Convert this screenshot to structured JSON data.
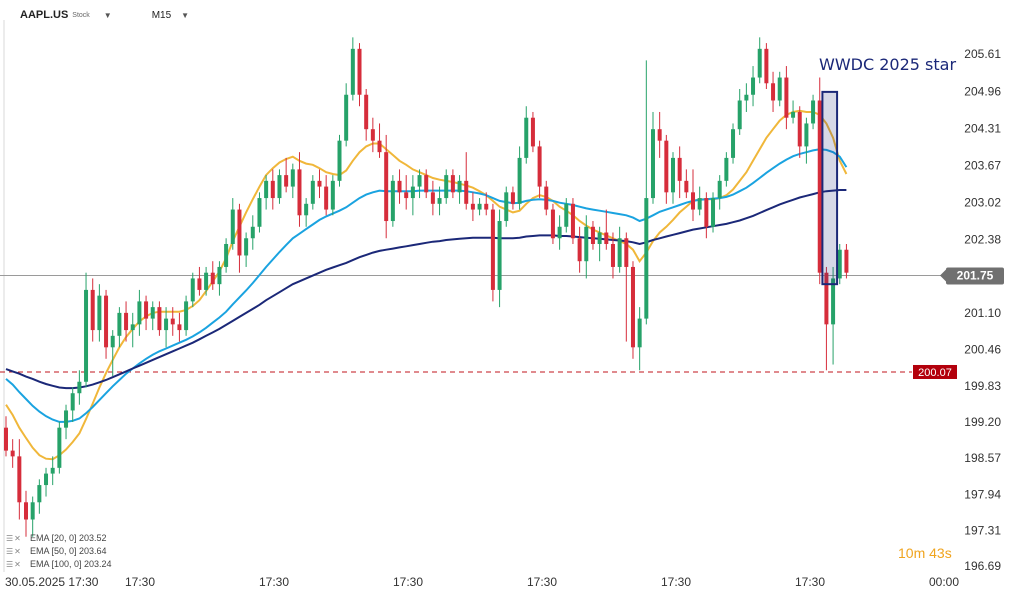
{
  "header": {
    "symbol": "AAPL.US",
    "asset_type": "Stock",
    "timeframe": "M15"
  },
  "colors": {
    "up_candle": "#26a269",
    "down_candle": "#d62d3b",
    "ema20": "#f0b73a",
    "ema50": "#1aa3e0",
    "ema100": "#1b2878",
    "price_line": "#9a9a9a",
    "price_label_bg": "#707070",
    "level_line": "#c0161c",
    "level_label_bg": "#b3000c",
    "annotation": "#1b2878",
    "timer": "#f0a41e"
  },
  "legend": [
    {
      "label": "EMA [20, 0] 203.52",
      "color": "#f0b73a"
    },
    {
      "label": "EMA [50, 0] 203.64",
      "color": "#1aa3e0"
    },
    {
      "label": "EMA [100, 0] 203.24",
      "color": "#1b2878"
    }
  ],
  "timer": {
    "minutes": "10",
    "m_unit": "m",
    "seconds": "43",
    "s_unit": "s"
  },
  "chart_data": {
    "type": "candlestick",
    "y_ticks": [
      "205.61",
      "204.96",
      "204.31",
      "203.67",
      "203.02",
      "202.38",
      "201.75",
      "201.10",
      "200.46",
      "199.83",
      "199.20",
      "198.57",
      "197.94",
      "197.31",
      "196.69"
    ],
    "x_ticks": [
      "30.05.2025 17:30",
      "17:30",
      "17:30",
      "17:30",
      "17:30",
      "17:30",
      "17:30",
      "00:00"
    ],
    "ylim": [
      196.69,
      206.1
    ],
    "current_price": 201.75,
    "current_price_label": "201.75",
    "level": 200.07,
    "level_label": "200.07",
    "annotation_text": "WWDC 2025 star",
    "annotation_box": {
      "from_index": 123,
      "to_index": 124,
      "high": 204.95,
      "low": 201.6
    },
    "candles_ohlc": [
      [
        199.1,
        199.3,
        198.6,
        198.7
      ],
      [
        198.7,
        198.9,
        198.4,
        198.6
      ],
      [
        198.6,
        198.9,
        197.5,
        197.8
      ],
      [
        197.8,
        198.0,
        197.2,
        197.5
      ],
      [
        197.5,
        197.9,
        197.2,
        197.8
      ],
      [
        197.8,
        198.2,
        197.6,
        198.1
      ],
      [
        198.1,
        198.4,
        197.9,
        198.3
      ],
      [
        198.3,
        198.6,
        198.1,
        198.4
      ],
      [
        198.4,
        199.2,
        198.3,
        199.1
      ],
      [
        199.1,
        199.5,
        198.9,
        199.4
      ],
      [
        199.4,
        199.8,
        199.2,
        199.7
      ],
      [
        199.7,
        200.1,
        199.5,
        199.9
      ],
      [
        199.9,
        201.8,
        199.8,
        201.5
      ],
      [
        201.5,
        201.7,
        200.6,
        200.8
      ],
      [
        200.8,
        201.6,
        200.6,
        201.4
      ],
      [
        201.4,
        201.5,
        200.3,
        200.5
      ],
      [
        200.5,
        200.8,
        200.0,
        200.7
      ],
      [
        200.7,
        201.2,
        200.5,
        201.1
      ],
      [
        201.1,
        201.3,
        200.6,
        200.8
      ],
      [
        200.8,
        201.1,
        200.5,
        200.9
      ],
      [
        200.9,
        201.5,
        200.7,
        201.3
      ],
      [
        201.3,
        201.4,
        200.8,
        201.0
      ],
      [
        201.0,
        201.3,
        200.8,
        201.2
      ],
      [
        201.2,
        201.3,
        200.7,
        200.8
      ],
      [
        200.8,
        201.2,
        200.5,
        201.0
      ],
      [
        201.0,
        201.2,
        200.7,
        200.9
      ],
      [
        200.9,
        201.1,
        200.6,
        200.8
      ],
      [
        200.8,
        201.4,
        200.7,
        201.3
      ],
      [
        201.3,
        201.8,
        201.2,
        201.7
      ],
      [
        201.7,
        201.9,
        201.4,
        201.5
      ],
      [
        201.5,
        201.9,
        201.4,
        201.8
      ],
      [
        201.8,
        202.0,
        201.5,
        201.6
      ],
      [
        201.6,
        202.0,
        201.4,
        201.9
      ],
      [
        201.9,
        202.4,
        201.8,
        202.3
      ],
      [
        202.3,
        203.1,
        202.2,
        202.9
      ],
      [
        202.9,
        203.0,
        201.8,
        202.1
      ],
      [
        202.1,
        202.5,
        201.9,
        202.4
      ],
      [
        202.4,
        202.8,
        202.2,
        202.6
      ],
      [
        202.6,
        203.2,
        202.5,
        203.1
      ],
      [
        203.1,
        203.5,
        202.9,
        203.4
      ],
      [
        203.4,
        203.6,
        202.9,
        203.1
      ],
      [
        203.1,
        203.6,
        203.0,
        203.5
      ],
      [
        203.5,
        203.8,
        203.2,
        203.3
      ],
      [
        203.3,
        203.7,
        203.1,
        203.6
      ],
      [
        203.6,
        203.9,
        202.6,
        202.8
      ],
      [
        202.8,
        203.1,
        202.6,
        203.0
      ],
      [
        203.0,
        203.5,
        202.9,
        203.4
      ],
      [
        203.4,
        203.6,
        203.1,
        203.3
      ],
      [
        203.3,
        203.5,
        202.8,
        202.9
      ],
      [
        202.9,
        203.5,
        202.8,
        203.4
      ],
      [
        203.4,
        204.2,
        203.3,
        204.1
      ],
      [
        204.1,
        205.1,
        204.0,
        204.9
      ],
      [
        204.9,
        205.9,
        204.8,
        205.7
      ],
      [
        205.7,
        205.8,
        204.7,
        204.9
      ],
      [
        204.9,
        205.0,
        204.1,
        204.3
      ],
      [
        204.3,
        204.5,
        203.9,
        204.1
      ],
      [
        204.1,
        204.4,
        203.8,
        203.9
      ],
      [
        203.9,
        204.2,
        202.4,
        202.7
      ],
      [
        202.7,
        203.5,
        202.6,
        203.4
      ],
      [
        203.4,
        203.6,
        203.0,
        203.2
      ],
      [
        203.2,
        203.5,
        202.9,
        203.1
      ],
      [
        203.1,
        203.5,
        202.8,
        203.3
      ],
      [
        203.3,
        203.6,
        203.1,
        203.5
      ],
      [
        203.5,
        203.6,
        203.1,
        203.2
      ],
      [
        203.2,
        203.4,
        202.8,
        203.0
      ],
      [
        203.0,
        203.3,
        202.8,
        203.1
      ],
      [
        203.1,
        203.6,
        203.0,
        203.5
      ],
      [
        203.5,
        203.6,
        203.1,
        203.2
      ],
      [
        203.2,
        203.5,
        203.0,
        203.4
      ],
      [
        203.4,
        203.9,
        202.9,
        203.0
      ],
      [
        203.0,
        203.2,
        202.7,
        202.9
      ],
      [
        202.9,
        203.1,
        202.8,
        203.0
      ],
      [
        203.0,
        203.2,
        202.8,
        202.9
      ],
      [
        202.9,
        203.0,
        201.3,
        201.5
      ],
      [
        201.5,
        202.9,
        201.2,
        202.7
      ],
      [
        202.7,
        203.3,
        202.6,
        203.2
      ],
      [
        203.2,
        203.3,
        202.9,
        203.0
      ],
      [
        203.0,
        204.0,
        202.9,
        203.8
      ],
      [
        203.8,
        204.7,
        203.7,
        204.5
      ],
      [
        204.5,
        204.6,
        203.9,
        204.0
      ],
      [
        204.0,
        204.1,
        203.1,
        203.3
      ],
      [
        203.3,
        203.4,
        202.8,
        202.9
      ],
      [
        202.9,
        203.0,
        202.3,
        202.4
      ],
      [
        202.4,
        202.8,
        202.2,
        202.6
      ],
      [
        202.6,
        203.1,
        202.5,
        203.0
      ],
      [
        203.0,
        203.1,
        202.3,
        202.4
      ],
      [
        202.4,
        202.6,
        201.8,
        202.0
      ],
      [
        202.0,
        202.8,
        201.7,
        202.6
      ],
      [
        202.6,
        202.7,
        202.2,
        202.3
      ],
      [
        202.3,
        202.6,
        202.0,
        202.5
      ],
      [
        202.5,
        202.9,
        202.2,
        202.3
      ],
      [
        202.3,
        202.5,
        201.7,
        201.9
      ],
      [
        201.9,
        202.6,
        201.8,
        202.4
      ],
      [
        202.4,
        202.5,
        200.6,
        201.9
      ],
      [
        201.9,
        202.0,
        200.3,
        200.5
      ],
      [
        200.5,
        201.2,
        200.1,
        201.0
      ],
      [
        201.0,
        205.5,
        200.9,
        203.1
      ],
      [
        203.1,
        204.6,
        203.0,
        204.3
      ],
      [
        204.3,
        204.6,
        203.8,
        204.1
      ],
      [
        204.1,
        204.2,
        203.0,
        203.2
      ],
      [
        203.2,
        203.9,
        203.0,
        203.8
      ],
      [
        203.8,
        204.0,
        203.1,
        203.4
      ],
      [
        203.4,
        203.6,
        203.1,
        203.2
      ],
      [
        203.2,
        203.6,
        202.7,
        202.9
      ],
      [
        202.9,
        203.3,
        202.8,
        203.1
      ],
      [
        203.1,
        203.2,
        202.4,
        202.6
      ],
      [
        202.6,
        203.2,
        202.5,
        203.1
      ],
      [
        203.1,
        203.5,
        202.9,
        203.4
      ],
      [
        203.4,
        203.9,
        203.3,
        203.8
      ],
      [
        203.8,
        204.4,
        203.7,
        204.3
      ],
      [
        204.3,
        205.0,
        204.2,
        204.8
      ],
      [
        204.8,
        205.1,
        204.6,
        204.9
      ],
      [
        204.9,
        205.4,
        204.7,
        205.2
      ],
      [
        205.2,
        205.9,
        205.1,
        205.7
      ],
      [
        205.7,
        205.8,
        205.0,
        205.1
      ],
      [
        205.1,
        205.3,
        204.6,
        204.8
      ],
      [
        204.8,
        205.3,
        204.7,
        205.2
      ],
      [
        205.2,
        205.4,
        204.3,
        204.5
      ],
      [
        204.5,
        204.8,
        204.4,
        204.6
      ],
      [
        204.6,
        204.7,
        203.8,
        204.0
      ],
      [
        204.0,
        204.5,
        203.7,
        204.4
      ],
      [
        204.4,
        204.9,
        204.3,
        204.8
      ],
      [
        204.8,
        205.2,
        201.6,
        201.8
      ],
      [
        201.8,
        201.9,
        200.1,
        200.9
      ],
      [
        200.9,
        201.9,
        200.2,
        201.7
      ],
      [
        201.7,
        202.3,
        201.6,
        202.2
      ],
      [
        202.2,
        202.3,
        201.7,
        201.8
      ]
    ],
    "ema": [
      {
        "period": 20,
        "values": [
          199.5,
          199.32,
          199.1,
          198.92,
          198.75,
          198.62,
          198.56,
          198.55,
          198.62,
          198.72,
          198.85,
          199.0,
          199.25,
          199.52,
          199.8,
          200.05,
          200.28,
          200.5,
          200.68,
          200.82,
          200.95,
          201.04,
          201.1,
          201.12,
          201.12,
          201.12,
          201.12,
          201.15,
          201.22,
          201.32,
          201.48,
          201.65,
          201.82,
          202.05,
          202.35,
          202.6,
          202.85,
          203.08,
          203.3,
          203.5,
          203.62,
          203.72,
          203.78,
          203.82,
          203.75,
          203.7,
          203.68,
          203.62,
          203.55,
          203.52,
          203.5,
          203.58,
          203.75,
          203.9,
          204.0,
          204.05,
          204.05,
          203.95,
          203.85,
          203.75,
          203.68,
          203.6,
          203.55,
          203.5,
          203.45,
          203.42,
          203.4,
          203.38,
          203.35,
          203.32,
          203.28,
          203.22,
          203.15,
          203.05,
          202.95,
          202.9,
          202.85,
          202.88,
          203.0,
          203.1,
          203.15,
          203.12,
          203.05,
          202.95,
          202.88,
          202.8,
          202.7,
          202.62,
          202.55,
          202.5,
          202.45,
          202.4,
          202.35,
          202.3,
          202.2,
          202.0,
          202.15,
          202.35,
          202.5,
          202.6,
          202.72,
          202.85,
          202.95,
          203.05,
          203.08,
          203.08,
          203.08,
          203.1,
          203.15,
          203.25,
          203.4,
          203.55,
          203.75,
          203.95,
          204.15,
          204.3,
          204.45,
          204.55,
          204.6,
          204.62,
          204.6,
          204.6,
          204.55,
          204.4,
          204.15,
          203.75,
          203.52
        ]
      },
      {
        "period": 50,
        "values": [
          199.95,
          199.85,
          199.72,
          199.6,
          199.48,
          199.38,
          199.3,
          199.24,
          199.2,
          199.2,
          199.22,
          199.26,
          199.35,
          199.46,
          199.58,
          199.7,
          199.82,
          199.93,
          200.04,
          200.13,
          200.22,
          200.3,
          200.37,
          200.43,
          200.48,
          200.53,
          200.58,
          200.63,
          200.69,
          200.76,
          200.84,
          200.93,
          201.02,
          201.12,
          201.25,
          201.37,
          201.49,
          201.62,
          201.76,
          201.9,
          202.03,
          202.16,
          202.28,
          202.4,
          202.48,
          202.56,
          202.64,
          202.72,
          202.78,
          202.83,
          202.88,
          202.94,
          203.02,
          203.1,
          203.16,
          203.2,
          203.23,
          203.22,
          203.22,
          203.22,
          203.22,
          203.22,
          203.23,
          203.23,
          203.23,
          203.23,
          203.23,
          203.23,
          203.23,
          203.22,
          203.2,
          203.18,
          203.15,
          203.1,
          203.05,
          203.03,
          203.01,
          203.02,
          203.05,
          203.07,
          203.08,
          203.07,
          203.05,
          203.02,
          203.0,
          202.98,
          202.95,
          202.92,
          202.9,
          202.88,
          202.86,
          202.84,
          202.82,
          202.8,
          202.76,
          202.7,
          202.74,
          202.8,
          202.86,
          202.9,
          202.94,
          202.98,
          203.02,
          203.05,
          203.07,
          203.08,
          203.09,
          203.1,
          203.12,
          203.16,
          203.22,
          203.28,
          203.36,
          203.45,
          203.54,
          203.62,
          203.7,
          203.77,
          203.83,
          203.87,
          203.9,
          203.93,
          203.95,
          203.94,
          203.9,
          203.82,
          203.64
        ]
      },
      {
        "period": 100,
        "values": [
          200.12,
          200.08,
          200.04,
          199.99,
          199.95,
          199.9,
          199.86,
          199.83,
          199.8,
          199.79,
          199.79,
          199.8,
          199.82,
          199.85,
          199.89,
          199.93,
          199.98,
          200.03,
          200.08,
          200.13,
          200.18,
          200.23,
          200.28,
          200.33,
          200.38,
          200.43,
          200.48,
          200.53,
          200.58,
          200.64,
          200.7,
          200.76,
          200.82,
          200.89,
          200.96,
          201.03,
          201.1,
          201.17,
          201.24,
          201.32,
          201.39,
          201.46,
          201.53,
          201.6,
          201.65,
          201.7,
          201.75,
          201.8,
          201.85,
          201.89,
          201.93,
          201.97,
          202.02,
          202.07,
          202.11,
          202.15,
          202.18,
          202.2,
          202.22,
          202.24,
          202.26,
          202.28,
          202.3,
          202.32,
          202.34,
          202.35,
          202.37,
          202.38,
          202.39,
          202.4,
          202.41,
          202.41,
          202.41,
          202.41,
          202.4,
          202.4,
          202.4,
          202.41,
          202.43,
          202.44,
          202.45,
          202.45,
          202.45,
          202.44,
          202.44,
          202.43,
          202.42,
          202.41,
          202.4,
          202.39,
          202.38,
          202.37,
          202.36,
          202.35,
          202.33,
          202.3,
          202.33,
          202.37,
          202.4,
          202.43,
          202.46,
          202.49,
          202.52,
          202.55,
          202.57,
          202.59,
          202.61,
          202.63,
          202.65,
          202.68,
          202.71,
          202.75,
          202.79,
          202.84,
          202.89,
          202.94,
          202.99,
          203.03,
          203.07,
          203.11,
          203.14,
          203.17,
          203.2,
          203.22,
          203.23,
          203.24,
          203.24
        ]
      }
    ]
  }
}
